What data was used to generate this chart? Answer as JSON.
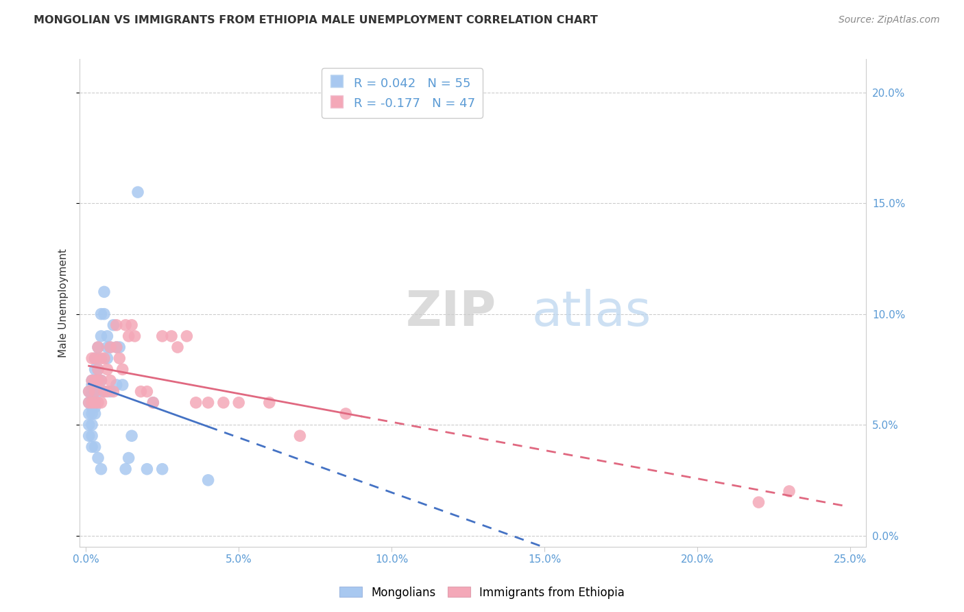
{
  "title": "MONGOLIAN VS IMMIGRANTS FROM ETHIOPIA MALE UNEMPLOYMENT CORRELATION CHART",
  "source": "Source: ZipAtlas.com",
  "ylabel": "Male Unemployment",
  "mongolian_color": "#a8c8f0",
  "ethiopia_color": "#f4a8b8",
  "mongolian_line_color": "#4472c4",
  "ethiopia_line_color": "#e06880",
  "watermark_zip": "ZIP",
  "watermark_atlas": "atlas",
  "legend1_r": "R = 0.042",
  "legend1_n": "N = 55",
  "legend2_r": "R = -0.177",
  "legend2_n": "N = 47",
  "legend_label1": "Mongolians",
  "legend_label2": "Immigrants from Ethiopia",
  "xlim": [
    -0.002,
    0.255
  ],
  "ylim": [
    -0.005,
    0.215
  ],
  "xticks": [
    0.0,
    0.05,
    0.1,
    0.15,
    0.2,
    0.25
  ],
  "yticks": [
    0.0,
    0.05,
    0.1,
    0.15,
    0.2
  ],
  "mongolian_x": [
    0.001,
    0.001,
    0.001,
    0.001,
    0.001,
    0.002,
    0.002,
    0.002,
    0.002,
    0.002,
    0.002,
    0.002,
    0.002,
    0.002,
    0.002,
    0.003,
    0.003,
    0.003,
    0.003,
    0.003,
    0.003,
    0.003,
    0.003,
    0.003,
    0.004,
    0.004,
    0.004,
    0.004,
    0.004,
    0.004,
    0.005,
    0.005,
    0.005,
    0.005,
    0.006,
    0.006,
    0.006,
    0.007,
    0.007,
    0.007,
    0.008,
    0.008,
    0.009,
    0.01,
    0.01,
    0.011,
    0.012,
    0.013,
    0.014,
    0.015,
    0.017,
    0.02,
    0.022,
    0.025,
    0.04
  ],
  "mongolian_y": [
    0.065,
    0.06,
    0.055,
    0.05,
    0.045,
    0.07,
    0.068,
    0.065,
    0.063,
    0.06,
    0.058,
    0.055,
    0.05,
    0.045,
    0.04,
    0.08,
    0.075,
    0.07,
    0.068,
    0.065,
    0.06,
    0.058,
    0.055,
    0.04,
    0.085,
    0.08,
    0.075,
    0.07,
    0.065,
    0.035,
    0.1,
    0.09,
    0.07,
    0.03,
    0.11,
    0.1,
    0.065,
    0.09,
    0.085,
    0.08,
    0.085,
    0.065,
    0.095,
    0.085,
    0.068,
    0.085,
    0.068,
    0.03,
    0.035,
    0.045,
    0.155,
    0.03,
    0.06,
    0.03,
    0.025
  ],
  "ethiopia_x": [
    0.001,
    0.001,
    0.002,
    0.002,
    0.002,
    0.003,
    0.003,
    0.003,
    0.003,
    0.004,
    0.004,
    0.004,
    0.004,
    0.005,
    0.005,
    0.005,
    0.006,
    0.006,
    0.007,
    0.007,
    0.008,
    0.008,
    0.009,
    0.01,
    0.01,
    0.011,
    0.012,
    0.013,
    0.014,
    0.015,
    0.016,
    0.018,
    0.02,
    0.022,
    0.025,
    0.028,
    0.03,
    0.033,
    0.036,
    0.04,
    0.045,
    0.05,
    0.06,
    0.07,
    0.085,
    0.22,
    0.23
  ],
  "ethiopia_y": [
    0.065,
    0.06,
    0.08,
    0.07,
    0.06,
    0.08,
    0.07,
    0.065,
    0.06,
    0.085,
    0.075,
    0.07,
    0.06,
    0.08,
    0.07,
    0.06,
    0.08,
    0.065,
    0.075,
    0.065,
    0.085,
    0.07,
    0.065,
    0.095,
    0.085,
    0.08,
    0.075,
    0.095,
    0.09,
    0.095,
    0.09,
    0.065,
    0.065,
    0.06,
    0.09,
    0.09,
    0.085,
    0.09,
    0.06,
    0.06,
    0.06,
    0.06,
    0.06,
    0.045,
    0.055,
    0.015,
    0.02
  ]
}
